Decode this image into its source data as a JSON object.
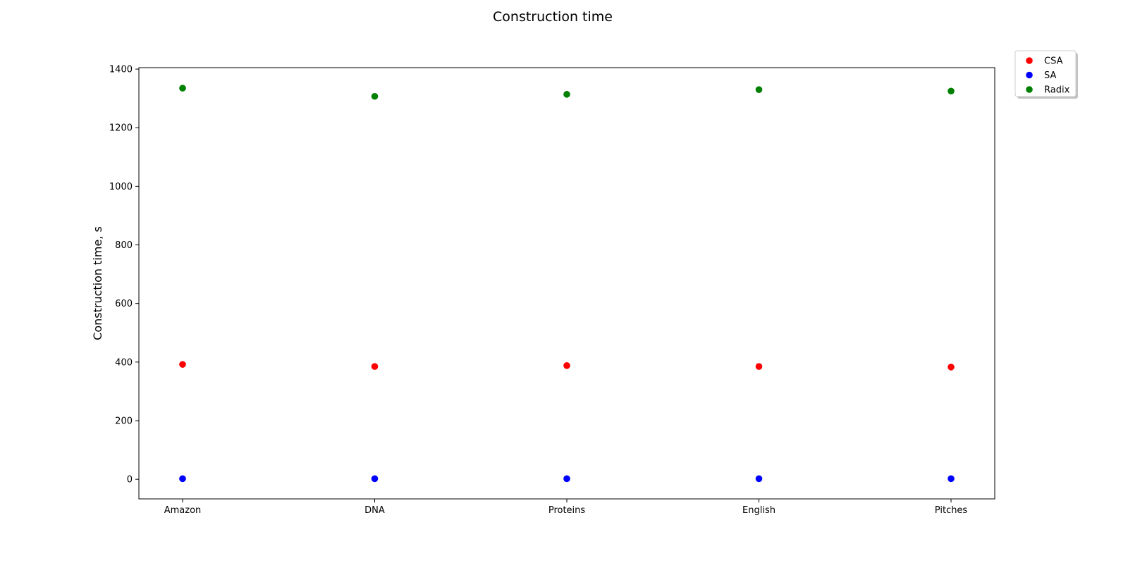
{
  "chart_data": {
    "type": "scatter",
    "title": "Construction time",
    "xlabel": "",
    "ylabel": "Construction time, s",
    "categories": [
      "Amazon",
      "DNA",
      "Proteins",
      "English",
      "Pitches"
    ],
    "series": [
      {
        "name": "CSA",
        "color": "#ff0000",
        "values": [
          392,
          385,
          388,
          385,
          383
        ]
      },
      {
        "name": "SA",
        "color": "#0000ff",
        "values": [
          2,
          2,
          2,
          2,
          2
        ]
      },
      {
        "name": "Radix",
        "color": "#008000",
        "values": [
          1335,
          1307,
          1314,
          1330,
          1325
        ]
      }
    ],
    "yticks": [
      0,
      200,
      400,
      600,
      800,
      1000,
      1200,
      1400
    ],
    "ylim": [
      -67,
      1405
    ],
    "grid": false,
    "legend": "outside-top-right"
  }
}
